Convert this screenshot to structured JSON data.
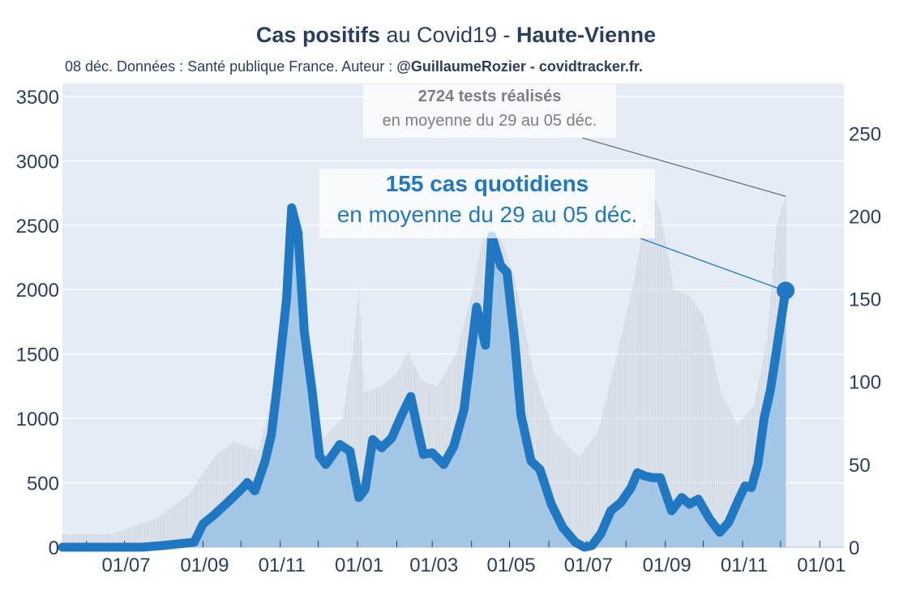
{
  "title": {
    "part1": "Cas positifs",
    "part2": " au Covid19 - ",
    "part3": "Haute-Vienne"
  },
  "subtitle": {
    "text": "08 déc. Données : Santé publique France. Auteur : ",
    "author": "@GuillaumeRozier - covidtracker.fr."
  },
  "annotations": {
    "tests_value": "2724 tests réalisés",
    "tests_period": "en moyenne du 29 au 05 déc.",
    "cases_value": "155 cas quotidiens",
    "cases_period": "en moyenne du 29 au 05 déc."
  },
  "colors": {
    "plot_bg": "#e5ecf6",
    "cases_line": "#1f78c1",
    "cases_fill": "#9dc3e6",
    "tests_bars": "#c8cfd8",
    "text": "#2a3f5f"
  },
  "chart_data": {
    "type": "line",
    "title": "Cas positifs au Covid19 - Haute-Vienne",
    "grid": true,
    "x_tick_labels": [
      "01/07",
      "01/09",
      "01/11",
      "01/01",
      "01/03",
      "01/05",
      "01/07",
      "01/09",
      "01/11",
      "01/01"
    ],
    "x_range": [
      "2020-05-13",
      "2022-01-20"
    ],
    "y_left": {
      "range": [
        0,
        3600
      ],
      "ticks": [
        0,
        500,
        1000,
        1500,
        2000,
        2500,
        3000,
        3500
      ]
    },
    "y_right": {
      "range": [
        0,
        280
      ],
      "ticks": [
        0,
        50,
        100,
        150,
        200,
        250
      ]
    },
    "series": [
      {
        "axis": "right",
        "style": "line + area",
        "points": [
          [
            "2020-05-13",
            0
          ],
          [
            "2020-06-15",
            0
          ],
          [
            "2020-07-15",
            0
          ],
          [
            "2020-07-31",
            1
          ],
          [
            "2020-08-25",
            3
          ],
          [
            "2020-09-01",
            14
          ],
          [
            "2020-09-09",
            19
          ],
          [
            "2020-09-19",
            26
          ],
          [
            "2020-09-30",
            34
          ],
          [
            "2020-10-06",
            39
          ],
          [
            "2020-10-12",
            34
          ],
          [
            "2020-10-20",
            52
          ],
          [
            "2020-10-25",
            68
          ],
          [
            "2020-10-30",
            100
          ],
          [
            "2020-11-06",
            150
          ],
          [
            "2020-11-10",
            205
          ],
          [
            "2020-11-15",
            190
          ],
          [
            "2020-11-20",
            130
          ],
          [
            "2020-11-26",
            95
          ],
          [
            "2020-12-02",
            55
          ],
          [
            "2020-12-07",
            50
          ],
          [
            "2020-12-18",
            62
          ],
          [
            "2020-12-26",
            58
          ],
          [
            "2021-01-02",
            30
          ],
          [
            "2021-01-07",
            35
          ],
          [
            "2021-01-13",
            65
          ],
          [
            "2021-01-20",
            60
          ],
          [
            "2021-01-28",
            66
          ],
          [
            "2021-02-05",
            80
          ],
          [
            "2021-02-12",
            91
          ],
          [
            "2021-02-17",
            73
          ],
          [
            "2021-02-22",
            56
          ],
          [
            "2021-03-01",
            57
          ],
          [
            "2021-03-10",
            50
          ],
          [
            "2021-03-18",
            61
          ],
          [
            "2021-03-26",
            83
          ],
          [
            "2021-04-05",
            145
          ],
          [
            "2021-04-12",
            122
          ],
          [
            "2021-04-17",
            188
          ],
          [
            "2021-04-24",
            170
          ],
          [
            "2021-04-29",
            166
          ],
          [
            "2021-05-05",
            125
          ],
          [
            "2021-05-10",
            80
          ],
          [
            "2021-05-18",
            52
          ],
          [
            "2021-05-25",
            47
          ],
          [
            "2021-06-03",
            26
          ],
          [
            "2021-06-12",
            12
          ],
          [
            "2021-06-22",
            3
          ],
          [
            "2021-06-29",
            0
          ],
          [
            "2021-07-05",
            1
          ],
          [
            "2021-07-12",
            8
          ],
          [
            "2021-07-20",
            22
          ],
          [
            "2021-07-28",
            27
          ],
          [
            "2021-08-05",
            36
          ],
          [
            "2021-08-10",
            45
          ],
          [
            "2021-08-16",
            43
          ],
          [
            "2021-08-22",
            42
          ],
          [
            "2021-08-28",
            42
          ],
          [
            "2021-09-06",
            22
          ],
          [
            "2021-09-14",
            30
          ],
          [
            "2021-09-20",
            26
          ],
          [
            "2021-09-27",
            29
          ],
          [
            "2021-10-06",
            17
          ],
          [
            "2021-10-14",
            9
          ],
          [
            "2021-10-21",
            15
          ],
          [
            "2021-10-29",
            29
          ],
          [
            "2021-11-03",
            37
          ],
          [
            "2021-11-08",
            36
          ],
          [
            "2021-11-13",
            50
          ],
          [
            "2021-11-18",
            78
          ],
          [
            "2021-11-23",
            95
          ],
          [
            "2021-11-28",
            120
          ],
          [
            "2021-12-02",
            140
          ],
          [
            "2021-12-05",
            155
          ]
        ]
      },
      {
        "axis": "left",
        "style": "bars",
        "points": [
          [
            "2020-05-13",
            100
          ],
          [
            "2020-06-20",
            100
          ],
          [
            "2020-07-25",
            220
          ],
          [
            "2020-08-20",
            400
          ],
          [
            "2020-09-10",
            700
          ],
          [
            "2020-09-25",
            820
          ],
          [
            "2020-10-15",
            750
          ],
          [
            "2020-10-31",
            1400
          ],
          [
            "2020-11-08",
            1680
          ],
          [
            "2020-11-15",
            1500
          ],
          [
            "2020-11-25",
            900
          ],
          [
            "2020-12-05",
            850
          ],
          [
            "2020-12-20",
            1000
          ],
          [
            "2020-12-28",
            1500
          ],
          [
            "2021-01-02",
            2000
          ],
          [
            "2021-01-06",
            1200
          ],
          [
            "2021-01-20",
            1250
          ],
          [
            "2021-02-01",
            1350
          ],
          [
            "2021-02-10",
            1520
          ],
          [
            "2021-02-20",
            1300
          ],
          [
            "2021-03-05",
            1250
          ],
          [
            "2021-03-20",
            1500
          ],
          [
            "2021-04-02",
            2000
          ],
          [
            "2021-04-12",
            2500
          ],
          [
            "2021-04-22",
            2450
          ],
          [
            "2021-05-05",
            2100
          ],
          [
            "2021-05-20",
            1350
          ],
          [
            "2021-06-05",
            900
          ],
          [
            "2021-06-25",
            700
          ],
          [
            "2021-07-10",
            900
          ],
          [
            "2021-07-25",
            1500
          ],
          [
            "2021-08-08",
            2100
          ],
          [
            "2021-08-20",
            2800
          ],
          [
            "2021-08-28",
            2600
          ],
          [
            "2021-09-08",
            2000
          ],
          [
            "2021-09-20",
            1950
          ],
          [
            "2021-10-01",
            1800
          ],
          [
            "2021-10-15",
            1200
          ],
          [
            "2021-10-28",
            950
          ],
          [
            "2021-11-10",
            1100
          ],
          [
            "2021-11-20",
            1600
          ],
          [
            "2021-11-28",
            2500
          ],
          [
            "2021-12-05",
            2724
          ]
        ]
      }
    ]
  }
}
